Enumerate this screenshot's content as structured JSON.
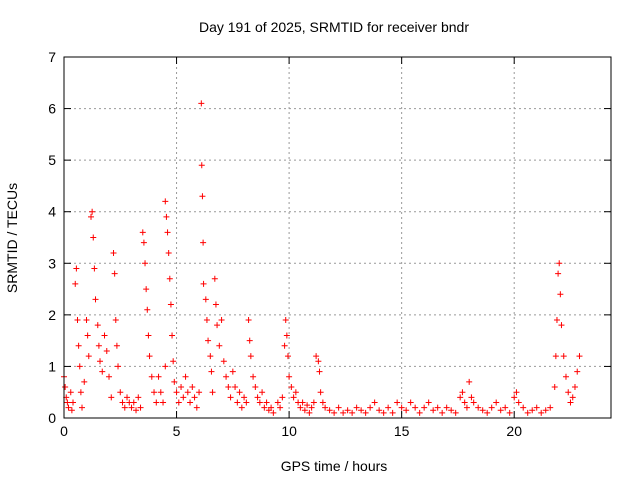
{
  "chart_data": {
    "type": "scatter",
    "title": "Day 191 of 2025, SRMTID for receiver bndr",
    "xlabel": "GPS time / hours",
    "ylabel": "SRMTID / TECUs",
    "xlim": [
      0,
      24.3
    ],
    "ylim": [
      0,
      7
    ],
    "xticks": [
      0,
      5,
      10,
      15,
      20
    ],
    "yticks": [
      0,
      1,
      2,
      3,
      4,
      5,
      6,
      7
    ],
    "grid": true,
    "marker": "plus",
    "color": "#ff0000",
    "series": [
      {
        "name": "SRMTID",
        "points": [
          [
            0.0,
            0.8
          ],
          [
            0.05,
            0.6
          ],
          [
            0.1,
            0.4
          ],
          [
            0.15,
            0.3
          ],
          [
            0.2,
            0.2
          ],
          [
            0.3,
            0.5
          ],
          [
            0.35,
            0.15
          ],
          [
            0.4,
            0.3
          ],
          [
            0.5,
            2.6
          ],
          [
            0.55,
            2.9
          ],
          [
            0.6,
            1.9
          ],
          [
            0.65,
            1.4
          ],
          [
            0.7,
            1.0
          ],
          [
            0.75,
            0.5
          ],
          [
            0.8,
            0.2
          ],
          [
            0.9,
            0.7
          ],
          [
            1.0,
            1.9
          ],
          [
            1.05,
            1.6
          ],
          [
            1.1,
            1.2
          ],
          [
            1.2,
            3.9
          ],
          [
            1.25,
            4.0
          ],
          [
            1.3,
            3.5
          ],
          [
            1.35,
            2.9
          ],
          [
            1.4,
            2.3
          ],
          [
            1.5,
            1.8
          ],
          [
            1.55,
            1.4
          ],
          [
            1.6,
            1.1
          ],
          [
            1.7,
            0.9
          ],
          [
            1.8,
            1.6
          ],
          [
            1.9,
            1.3
          ],
          [
            2.0,
            0.8
          ],
          [
            2.1,
            0.4
          ],
          [
            2.2,
            3.2
          ],
          [
            2.25,
            2.8
          ],
          [
            2.3,
            1.9
          ],
          [
            2.35,
            1.4
          ],
          [
            2.4,
            1.0
          ],
          [
            2.5,
            0.5
          ],
          [
            2.6,
            0.3
          ],
          [
            2.7,
            0.2
          ],
          [
            2.8,
            0.4
          ],
          [
            2.9,
            0.3
          ],
          [
            3.0,
            0.2
          ],
          [
            3.1,
            0.3
          ],
          [
            3.2,
            0.15
          ],
          [
            3.3,
            0.4
          ],
          [
            3.4,
            0.2
          ],
          [
            3.5,
            3.6
          ],
          [
            3.55,
            3.4
          ],
          [
            3.6,
            3.0
          ],
          [
            3.65,
            2.5
          ],
          [
            3.7,
            2.1
          ],
          [
            3.75,
            1.6
          ],
          [
            3.8,
            1.2
          ],
          [
            3.9,
            0.8
          ],
          [
            4.0,
            0.5
          ],
          [
            4.1,
            0.3
          ],
          [
            4.2,
            0.8
          ],
          [
            4.3,
            0.5
          ],
          [
            4.4,
            0.3
          ],
          [
            4.5,
            1.0
          ],
          [
            4.5,
            4.2
          ],
          [
            4.55,
            3.9
          ],
          [
            4.6,
            3.6
          ],
          [
            4.65,
            3.2
          ],
          [
            4.7,
            2.7
          ],
          [
            4.75,
            2.2
          ],
          [
            4.8,
            1.6
          ],
          [
            4.85,
            1.1
          ],
          [
            4.9,
            0.7
          ],
          [
            5.0,
            0.5
          ],
          [
            5.1,
            0.3
          ],
          [
            5.2,
            0.6
          ],
          [
            5.3,
            0.4
          ],
          [
            5.4,
            0.8
          ],
          [
            5.5,
            0.5
          ],
          [
            5.6,
            0.3
          ],
          [
            5.7,
            0.6
          ],
          [
            5.8,
            0.4
          ],
          [
            5.9,
            0.2
          ],
          [
            6.0,
            0.5
          ],
          [
            6.1,
            6.1
          ],
          [
            6.12,
            4.9
          ],
          [
            6.15,
            4.3
          ],
          [
            6.18,
            3.4
          ],
          [
            6.2,
            2.6
          ],
          [
            6.3,
            2.3
          ],
          [
            6.35,
            1.9
          ],
          [
            6.4,
            1.5
          ],
          [
            6.5,
            1.2
          ],
          [
            6.55,
            0.9
          ],
          [
            6.6,
            0.5
          ],
          [
            6.7,
            2.7
          ],
          [
            6.75,
            2.2
          ],
          [
            6.8,
            1.8
          ],
          [
            6.9,
            1.4
          ],
          [
            7.0,
            1.9
          ],
          [
            7.1,
            1.1
          ],
          [
            7.2,
            0.8
          ],
          [
            7.3,
            0.6
          ],
          [
            7.4,
            0.4
          ],
          [
            7.5,
            0.9
          ],
          [
            7.6,
            0.6
          ],
          [
            7.7,
            0.3
          ],
          [
            7.8,
            0.5
          ],
          [
            7.9,
            0.2
          ],
          [
            8.0,
            0.4
          ],
          [
            8.1,
            0.3
          ],
          [
            8.2,
            1.9
          ],
          [
            8.25,
            1.5
          ],
          [
            8.3,
            1.2
          ],
          [
            8.4,
            0.8
          ],
          [
            8.5,
            0.6
          ],
          [
            8.6,
            0.4
          ],
          [
            8.7,
            0.3
          ],
          [
            8.8,
            0.5
          ],
          [
            8.9,
            0.2
          ],
          [
            9.0,
            0.3
          ],
          [
            9.1,
            0.15
          ],
          [
            9.2,
            0.2
          ],
          [
            9.3,
            0.1
          ],
          [
            9.5,
            0.3
          ],
          [
            9.6,
            0.2
          ],
          [
            9.7,
            0.4
          ],
          [
            9.8,
            1.4
          ],
          [
            9.85,
            1.9
          ],
          [
            9.9,
            1.6
          ],
          [
            9.95,
            1.2
          ],
          [
            10.0,
            0.8
          ],
          [
            10.1,
            0.6
          ],
          [
            10.2,
            0.4
          ],
          [
            10.3,
            0.5
          ],
          [
            10.4,
            0.3
          ],
          [
            10.5,
            0.2
          ],
          [
            10.6,
            0.3
          ],
          [
            10.7,
            0.15
          ],
          [
            10.8,
            0.25
          ],
          [
            10.9,
            0.1
          ],
          [
            11.0,
            0.2
          ],
          [
            11.1,
            0.3
          ],
          [
            11.2,
            1.2
          ],
          [
            11.3,
            1.1
          ],
          [
            11.35,
            0.9
          ],
          [
            11.4,
            0.5
          ],
          [
            11.5,
            0.3
          ],
          [
            11.6,
            0.2
          ],
          [
            11.8,
            0.15
          ],
          [
            12.0,
            0.1
          ],
          [
            12.2,
            0.2
          ],
          [
            12.4,
            0.1
          ],
          [
            12.6,
            0.15
          ],
          [
            12.8,
            0.1
          ],
          [
            13.0,
            0.2
          ],
          [
            13.2,
            0.15
          ],
          [
            13.4,
            0.1
          ],
          [
            13.6,
            0.2
          ],
          [
            13.8,
            0.3
          ],
          [
            14.0,
            0.15
          ],
          [
            14.2,
            0.1
          ],
          [
            14.4,
            0.2
          ],
          [
            14.6,
            0.1
          ],
          [
            14.8,
            0.3
          ],
          [
            15.0,
            0.2
          ],
          [
            15.2,
            0.15
          ],
          [
            15.4,
            0.3
          ],
          [
            15.6,
            0.2
          ],
          [
            15.8,
            0.1
          ],
          [
            16.0,
            0.2
          ],
          [
            16.2,
            0.3
          ],
          [
            16.4,
            0.15
          ],
          [
            16.6,
            0.2
          ],
          [
            16.8,
            0.1
          ],
          [
            17.0,
            0.2
          ],
          [
            17.2,
            0.15
          ],
          [
            17.4,
            0.1
          ],
          [
            17.6,
            0.4
          ],
          [
            17.7,
            0.5
          ],
          [
            17.8,
            0.3
          ],
          [
            17.9,
            0.2
          ],
          [
            18.0,
            0.7
          ],
          [
            18.1,
            0.4
          ],
          [
            18.2,
            0.3
          ],
          [
            18.4,
            0.2
          ],
          [
            18.6,
            0.15
          ],
          [
            18.8,
            0.1
          ],
          [
            19.0,
            0.2
          ],
          [
            19.2,
            0.3
          ],
          [
            19.4,
            0.15
          ],
          [
            19.6,
            0.2
          ],
          [
            19.8,
            0.1
          ],
          [
            20.0,
            0.4
          ],
          [
            20.1,
            0.5
          ],
          [
            20.2,
            0.3
          ],
          [
            20.4,
            0.2
          ],
          [
            20.6,
            0.1
          ],
          [
            20.8,
            0.15
          ],
          [
            21.0,
            0.2
          ],
          [
            21.2,
            0.1
          ],
          [
            21.4,
            0.15
          ],
          [
            21.6,
            0.2
          ],
          [
            21.8,
            0.6
          ],
          [
            21.85,
            1.2
          ],
          [
            21.9,
            1.9
          ],
          [
            21.95,
            2.8
          ],
          [
            22.0,
            3.0
          ],
          [
            22.05,
            2.4
          ],
          [
            22.1,
            1.8
          ],
          [
            22.2,
            1.2
          ],
          [
            22.3,
            0.8
          ],
          [
            22.4,
            0.5
          ],
          [
            22.5,
            0.3
          ],
          [
            22.6,
            0.4
          ],
          [
            22.7,
            0.6
          ],
          [
            22.8,
            0.9
          ],
          [
            22.9,
            1.2
          ]
        ]
      }
    ]
  }
}
